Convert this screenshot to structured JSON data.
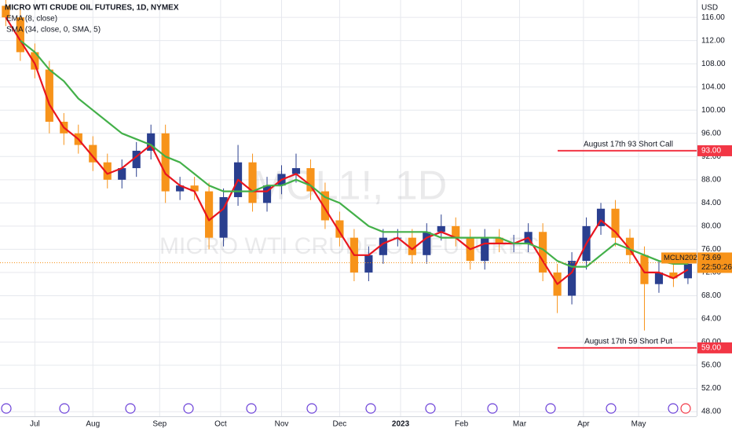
{
  "chart_data": {
    "type": "candlestick",
    "title": "MICRO WTI CRUDE OIL FUTURES, 1D, NYMEX",
    "currency": "USD",
    "watermark": [
      "MCL1!, 1D",
      "MICRO WTI CRUDE OIL FUTURES"
    ],
    "x": [
      -10,
      -5,
      0,
      5,
      10,
      15,
      20,
      25,
      30,
      35,
      40,
      45,
      50,
      55,
      60,
      65,
      70,
      75,
      80,
      85,
      90,
      95,
      100,
      105,
      110,
      115,
      120,
      125,
      130,
      135,
      140,
      145,
      150,
      155,
      160,
      165,
      170,
      175,
      180,
      185,
      190,
      195,
      200,
      205,
      210,
      215,
      220,
      225
    ],
    "open": [
      118,
      116,
      110,
      107,
      98,
      96,
      94,
      91,
      88,
      90,
      93,
      96,
      86,
      87,
      86,
      78,
      85,
      91,
      84,
      87,
      89,
      90,
      86,
      81,
      78,
      72,
      75,
      78,
      78,
      75,
      79,
      80,
      78,
      74,
      78,
      77,
      77,
      79,
      72,
      68,
      74,
      80,
      83,
      78,
      75,
      70,
      72,
      71
    ],
    "high": [
      119.5,
      117.5,
      111.5,
      108.5,
      99.5,
      97.5,
      95.5,
      92.5,
      91.5,
      94.5,
      97.5,
      97.5,
      88.5,
      88.5,
      87.5,
      86.5,
      94,
      92.5,
      88.5,
      90.5,
      92.5,
      91.5,
      87.5,
      82.5,
      79.5,
      76.5,
      79.5,
      79.5,
      79.5,
      80.5,
      82,
      81.5,
      79.5,
      79.5,
      79.5,
      78.5,
      80.5,
      80.5,
      73.5,
      75.5,
      81.5,
      84,
      84.5,
      79.5,
      76.5,
      74,
      73.5,
      74.5
    ],
    "low": [
      114.5,
      108.5,
      105.5,
      96,
      94,
      92.5,
      89.5,
      86.5,
      86.5,
      88.5,
      91.5,
      84,
      84.5,
      84.5,
      76,
      76.5,
      83.5,
      82.5,
      82.5,
      85.5,
      87.5,
      84.5,
      79.5,
      76.5,
      70.5,
      70.5,
      73.5,
      76.5,
      73.5,
      73.5,
      77.5,
      76.5,
      72.5,
      72.5,
      75.5,
      75.5,
      75.5,
      70.5,
      65,
      66.5,
      72.5,
      78.5,
      76.5,
      73.5,
      62,
      68.5,
      69.5,
      70
    ],
    "close": [
      116,
      110,
      107,
      98,
      96,
      94,
      91,
      88,
      90,
      93,
      96,
      86,
      87,
      86,
      78,
      85,
      91,
      84,
      87,
      89,
      90,
      86,
      81,
      78,
      72,
      75,
      78,
      78,
      75,
      79,
      80,
      78,
      74,
      78,
      77,
      77,
      79,
      72,
      68,
      74,
      80,
      83,
      78,
      75,
      70,
      72,
      71,
      73.5
    ],
    "up_color": "#2a3f8f",
    "down_color": "#f7931a",
    "series": [
      {
        "name": "EMA (8, close)",
        "color": "#e8151f",
        "values": [
          116,
          112,
          108,
          101,
          97,
          95,
          92,
          89,
          90,
          92,
          94,
          89,
          87,
          86,
          81,
          83,
          88,
          86,
          86,
          88,
          89,
          87,
          83,
          79,
          75,
          75,
          77,
          78,
          76,
          78,
          79,
          78,
          76,
          77,
          77,
          77,
          78,
          74,
          70,
          72,
          77,
          81,
          79,
          76,
          72,
          72,
          71,
          72.5
        ]
      },
      {
        "name": "SMA (34, close, 0, SMA, 5)",
        "color": "#43b049",
        "values": [
          null,
          112,
          110,
          107,
          105,
          102,
          100,
          98,
          96,
          95,
          94,
          92,
          91,
          89,
          87,
          86,
          86,
          86,
          87,
          87,
          88,
          87,
          85,
          84,
          82,
          80,
          79,
          79,
          79,
          79,
          78,
          78,
          78,
          78,
          78,
          77,
          77,
          76,
          74,
          73,
          73,
          75,
          77,
          76,
          75,
          74,
          73.5,
          73.5
        ]
      }
    ],
    "xlim": [
      -12,
      228
    ],
    "xticks": [
      {
        "value": 0,
        "label": "Jul"
      },
      {
        "value": 20,
        "label": "Aug"
      },
      {
        "value": 43,
        "label": "Sep"
      },
      {
        "value": 64,
        "label": "Oct"
      },
      {
        "value": 85,
        "label": "Nov"
      },
      {
        "value": 105,
        "label": "Dec"
      },
      {
        "value": 126,
        "label": "2023"
      },
      {
        "value": 147,
        "label": "Feb"
      },
      {
        "value": 167,
        "label": "Mar"
      },
      {
        "value": 189,
        "label": "Apr"
      },
      {
        "value": 208,
        "label": "May"
      }
    ],
    "ylim": [
      47.2,
      119
    ],
    "yticks": [
      {
        "value": 48,
        "label": "48.00"
      },
      {
        "value": 52,
        "label": "52.00"
      },
      {
        "value": 56,
        "label": "56.00"
      },
      {
        "value": 60,
        "label": "60.00"
      },
      {
        "value": 64,
        "label": "64.00"
      },
      {
        "value": 68,
        "label": "68.00"
      },
      {
        "value": 72,
        "label": "72.00"
      },
      {
        "value": 76,
        "label": "76.00"
      },
      {
        "value": 80,
        "label": "80.00"
      },
      {
        "value": 84,
        "label": "84.00"
      },
      {
        "value": 88,
        "label": "88.00"
      },
      {
        "value": 92,
        "label": "92.00"
      },
      {
        "value": 96,
        "label": "96.00"
      },
      {
        "value": 100,
        "label": "100.00"
      },
      {
        "value": 104,
        "label": "104.00"
      },
      {
        "value": 108,
        "label": "108.00"
      },
      {
        "value": 112,
        "label": "112.00"
      },
      {
        "value": 116,
        "label": "116.00"
      }
    ],
    "grid": true,
    "levels": [
      {
        "label": "August 17th 93 Short Call",
        "value": 93,
        "value_label": "93.00",
        "color": "#f23645"
      },
      {
        "label": "August 17th 59 Short Put",
        "value": 59,
        "value_label": "59.00",
        "color": "#f23645"
      }
    ],
    "last_price": {
      "symbol": "MCLN2023",
      "value": 73.69,
      "value_label": "73.69",
      "countdown": "22:50:26",
      "color": "#f7931a"
    }
  }
}
